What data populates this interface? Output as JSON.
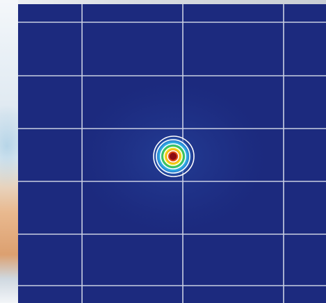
{
  "image": {
    "kind": "beam-profile-intensity-map",
    "colors": {
      "background": "#1c2a7e",
      "grid": "#e8ecf4",
      "contour": "#ffffff",
      "peak": "#c4121a",
      "ring_orange": "#f07a10",
      "ring_yellow": "#f5e21a",
      "ring_green": "#38c450",
      "ring_cyan": "#2fb7e8",
      "halo": "#2a4ea8"
    },
    "legend": "none",
    "labels": "none"
  }
}
